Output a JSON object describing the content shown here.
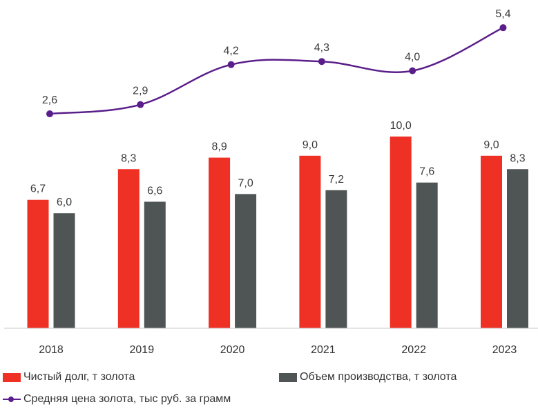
{
  "chart_data": {
    "type": "bar",
    "categories": [
      "2018",
      "2019",
      "2020",
      "2021",
      "2022",
      "2023"
    ],
    "series": [
      {
        "name": "Чистый долг, т золота",
        "type": "bar",
        "color": "#ee3124",
        "values": [
          6.7,
          8.3,
          8.9,
          9.0,
          10.0,
          9.0
        ],
        "labels": [
          "6,7",
          "8,3",
          "8,9",
          "9,0",
          "10,0",
          "9,0"
        ]
      },
      {
        "name": "Объем производства, т золота",
        "type": "bar",
        "color": "#4f5455",
        "values": [
          6.0,
          6.6,
          7.0,
          7.2,
          7.6,
          8.3
        ],
        "labels": [
          "6,0",
          "6,6",
          "7,0",
          "7,2",
          "7,6",
          "8,3"
        ]
      },
      {
        "name": "Средняя цена золота, тыс руб. за грамм",
        "type": "line",
        "color": "#5a1e8a",
        "values": [
          2.6,
          2.9,
          4.2,
          4.3,
          4.0,
          5.4
        ],
        "labels": [
          "2,6",
          "2,9",
          "4,2",
          "4,3",
          "4,0",
          "5,4"
        ]
      }
    ],
    "grid": false,
    "legend_position": "bottom"
  }
}
